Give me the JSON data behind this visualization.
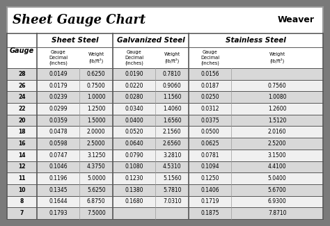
{
  "title": "Sheet Gauge Chart",
  "bg_outer": "#7a7a7a",
  "bg_inner": "#ffffff",
  "row_bg_odd": "#d8d8d8",
  "row_bg_even": "#f0f0f0",
  "border_color": "#555555",
  "gauges": [
    28,
    26,
    24,
    22,
    20,
    18,
    16,
    14,
    12,
    11,
    10,
    8,
    7
  ],
  "sheet_steel": {
    "decimal": [
      "0.0149",
      "0.0179",
      "0.0239",
      "0.0299",
      "0.0359",
      "0.0478",
      "0.0598",
      "0.0747",
      "0.1046",
      "0.1196",
      "0.1345",
      "0.1644",
      "0.1793"
    ],
    "weight": [
      "0.6250",
      "0.7500",
      "1.0000",
      "1.2500",
      "1.5000",
      "2.0000",
      "2.5000",
      "3.1250",
      "4.3750",
      "5.0000",
      "5.6250",
      "6.8750",
      "7.5000"
    ]
  },
  "galvanized_steel": {
    "decimal": [
      "0.0190",
      "0.0220",
      "0.0280",
      "0.0340",
      "0.0400",
      "0.0520",
      "0.0640",
      "0.0790",
      "0.1080",
      "0.1230",
      "0.1380",
      "0.1680",
      ""
    ],
    "weight": [
      "0.7810",
      "0.9060",
      "1.1560",
      "1.4060",
      "1.6560",
      "2.1560",
      "2.6560",
      "3.2810",
      "4.5310",
      "5.1560",
      "5.7810",
      "7.0310",
      ""
    ]
  },
  "stainless_steel": {
    "decimal": [
      "0.0156",
      "0.0187",
      "0.0250",
      "0.0312",
      "0.0375",
      "0.0500",
      "0.0625",
      "0.0781",
      "0.1094",
      "0.1250",
      "0.1406",
      "0.1719",
      "0.1875"
    ],
    "weight": [
      "",
      "0.7560",
      "1.0080",
      "1.2600",
      "1.5120",
      "2.0160",
      "2.5200",
      "3.1500",
      "4.4100",
      "5.0400",
      "5.6700",
      "6.9300",
      "7.8710"
    ]
  }
}
